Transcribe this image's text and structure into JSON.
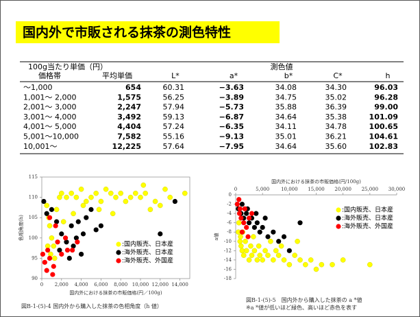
{
  "title": "国内外で市販される抹茶の測色特性",
  "table": {
    "group_headers": [
      "100g当たり単価（円）",
      "測色値"
    ],
    "headers": [
      "価格帯",
      "平均単価",
      "L*",
      "a*",
      "b*",
      "C*",
      "h"
    ],
    "rows": [
      [
        "～1,000",
        "654",
        "60.31",
        "−3.63",
        "34.08",
        "34.30",
        "96.03"
      ],
      [
        "1,001～ 2,000",
        "1,575",
        "56.25",
        "−3.89",
        "34.75",
        "35.02",
        "96.28"
      ],
      [
        "2,001～ 3,000",
        "2,247",
        "57.94",
        "−5.73",
        "35.88",
        "36.39",
        "99.00"
      ],
      [
        "3,001～ 4,000",
        "3,492",
        "59.13",
        "−6.87",
        "34.64",
        "35.38",
        "101.09"
      ],
      [
        "4,001～ 5,000",
        "4,404",
        "57.24",
        "−6.35",
        "34.11",
        "34.78",
        "100.65"
      ],
      [
        "5,001～10,000",
        "7,582",
        "55.16",
        "−9.13",
        "35.01",
        "36.21",
        "104.61"
      ],
      [
        "10,001～",
        "12,225",
        "57.64",
        "−7.95",
        "34.64",
        "35.60",
        "102.83"
      ]
    ]
  },
  "charts": [
    {
      "type": "scatter",
      "x_label": "国内外における抹茶の市販価格(円／100g)",
      "y_label": "色相角度(h)",
      "x_axis_position": "bottom",
      "legend": "lower-right",
      "xlim": [
        0,
        15000
      ],
      "ylim": [
        90,
        115
      ],
      "xticks": [
        0,
        {
          "value": 2000,
          "label": "2,000"
        },
        {
          "value": 4000,
          "label": "4,000"
        },
        {
          "value": 6000,
          "label": "6,000"
        },
        {
          "value": 8000,
          "label": "8,000"
        },
        {
          "value": 10000,
          "label": "10,000"
        },
        {
          "value": 12000,
          "label": "12,000"
        },
        {
          "value": 14000,
          "label": "14,000"
        }
      ],
      "yticks": [
        90,
        95,
        100,
        105,
        110,
        115
      ],
      "series": [
        {
          "name": ":国内販売、日本産",
          "color": "#ffff00",
          "x": [
            500,
            700,
            800,
            1000,
            1200,
            1500,
            1800,
            2000,
            2500,
            3000,
            3500,
            4000,
            4500,
            5000,
            5500,
            6000,
            6500,
            7000,
            7500,
            8000,
            8500,
            9000,
            9500,
            10000,
            10500,
            11000,
            11500,
            12000,
            12500,
            13000,
            14500,
            600,
            900,
            1300,
            2200,
            3200,
            4200,
            5800,
            7200,
            10300
          ],
          "values": [
            108,
            105,
            103,
            100,
            98,
            107,
            110,
            111,
            110,
            111,
            110,
            112,
            109,
            110,
            111,
            109,
            112,
            111,
            110,
            111,
            109,
            110,
            111,
            110,
            111,
            107,
            109,
            108,
            112,
            110,
            111,
            98,
            96,
            95,
            104,
            106,
            108,
            107,
            106,
            113
          ]
        },
        {
          "name": ":海外販売、日本産",
          "color": "#000000",
          "x": [
            200,
            500,
            1000,
            1500,
            2000,
            2500,
            3000,
            3500,
            4000,
            4500,
            5000,
            5500,
            6000,
            3200,
            2800,
            1800,
            13500,
            12000,
            4200,
            3700
          ],
          "values": [
            109,
            106,
            107,
            104,
            101,
            99,
            103,
            100,
            96,
            105,
            107,
            102,
            103,
            98,
            95,
            97,
            109,
            101,
            101,
            104
          ]
        },
        {
          "name": ":海外販売、外国産",
          "color": "#ff0000",
          "x": [
            100,
            300,
            500,
            800,
            1200,
            1600,
            2000,
            2400,
            3100,
            800,
            1400,
            600,
            1100,
            2600,
            3600
          ],
          "values": [
            96,
            94,
            92,
            95,
            93,
            99,
            96,
            100,
            97,
            105,
            103,
            97,
            91,
            97,
            99
          ]
        }
      ],
      "caption": [
        "図B-1-(5)-4 国内外から購入した抹茶の色相角度（h 値）"
      ]
    },
    {
      "type": "scatter",
      "x_label": "国内外における抹茶の市販価格(円/100g)",
      "y_label": "a値",
      "x_axis_position": "top",
      "legend": "upper-right",
      "xlim": [
        0,
        30000
      ],
      "ylim": [
        -18,
        0
      ],
      "xticks": [
        0,
        {
          "value": 5000,
          "label": "5,000"
        },
        {
          "value": 10000,
          "label": "10,000"
        },
        {
          "value": 15000,
          "label": "15,000"
        },
        {
          "value": 20000,
          "label": "20,000"
        },
        {
          "value": 25000,
          "label": "25,000"
        },
        {
          "value": 30000,
          "label": "30,000"
        }
      ],
      "yticks": [
        0,
        -2,
        -4,
        -6,
        -8,
        -10,
        -12,
        -14,
        -16,
        -18
      ],
      "series": [
        {
          "name": ":国内販売、日本産",
          "color": "#ffff00",
          "x": [
            500,
            800,
            1000,
            1200,
            1500,
            2000,
            2500,
            3000,
            3500,
            4000,
            4500,
            5000,
            5500,
            6000,
            7000,
            8000,
            9000,
            10000,
            11000,
            12000,
            13000,
            14000,
            15000,
            18000,
            20000,
            25000,
            600,
            900,
            1800,
            2800,
            3300,
            4300,
            6500,
            7500,
            8500,
            11500,
            16000,
            1300
          ],
          "values": [
            -8,
            -10,
            -11,
            -12,
            -13,
            -12,
            -14,
            -13,
            -12,
            -14,
            -13,
            -14,
            -12,
            -13,
            -14,
            -13,
            -14,
            -15,
            -13,
            -14,
            -15,
            -14,
            -16,
            -15,
            -14,
            -15,
            -6,
            -9,
            -10,
            -11,
            -9,
            -11,
            -10,
            -12,
            -11,
            -10,
            -15,
            -8
          ]
        },
        {
          "name": ":海外販売、日本産",
          "color": "#000000",
          "x": [
            500,
            1000,
            1500,
            2000,
            2500,
            3000,
            3500,
            4000,
            4500,
            5000,
            6000,
            7000,
            8000,
            9000,
            10000,
            2200,
            3800,
            12000,
            5500,
            1200
          ],
          "values": [
            -3,
            -4,
            -5,
            -4,
            -6,
            -5,
            -7,
            -6,
            -8,
            -7,
            -9,
            -8,
            -10,
            -9,
            -12,
            -3,
            -4,
            -6,
            -5,
            -2
          ]
        },
        {
          "name": ":海外販売、外国産",
          "color": "#ff0000",
          "x": [
            300,
            700,
            1000,
            1500,
            2000,
            2500,
            3000,
            800,
            1200,
            600,
            1700,
            2300
          ],
          "values": [
            -2,
            -4,
            -5,
            -6,
            -7,
            -5,
            -4,
            -3,
            -8,
            -1,
            -3,
            -9
          ]
        }
      ],
      "caption": [
        "図B-1-(5)-5　国内外から購入した抹茶の a *値",
        "※a *値が低いほど緑色、高いほど赤色を表す"
      ]
    }
  ]
}
